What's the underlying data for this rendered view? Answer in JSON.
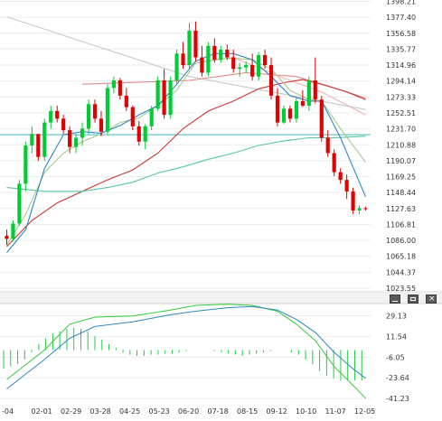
{
  "chart_data": {
    "type": "candlestick",
    "price_axis": {
      "ticks": [
        1023.55,
        1044.37,
        1065.18,
        1086.0,
        1106.81,
        1127.63,
        1148.44,
        1169.25,
        1190.07,
        1210.88,
        1231.7,
        1252.51,
        1273.33,
        1294.14,
        1314.96,
        1335.77,
        1356.58,
        1377.4,
        1398.21
      ],
      "range": [
        1020,
        1400
      ]
    },
    "indicator_axis": {
      "ticks": [
        29.13,
        11.54,
        -6.05,
        -23.64,
        -41.23
      ],
      "range": [
        -45,
        38
      ]
    },
    "x_labels": [
      "-04",
      "02-01",
      "02-29",
      "03-28",
      "04-25",
      "05-23",
      "06-20",
      "07-18",
      "08-15",
      "09-12",
      "10-10",
      "11-07",
      "12-05"
    ],
    "horizontal_level": 1224,
    "candles": [
      [
        1092,
        1100,
        1080,
        1088
      ],
      [
        1088,
        1112,
        1085,
        1108
      ],
      [
        1108,
        1165,
        1105,
        1160
      ],
      [
        1160,
        1215,
        1150,
        1210
      ],
      [
        1210,
        1235,
        1200,
        1225
      ],
      [
        1225,
        1225,
        1190,
        1195
      ],
      [
        1195,
        1245,
        1190,
        1240
      ],
      [
        1240,
        1262,
        1232,
        1255
      ],
      [
        1255,
        1262,
        1240,
        1245
      ],
      [
        1245,
        1250,
        1225,
        1230
      ],
      [
        1230,
        1235,
        1200,
        1208
      ],
      [
        1208,
        1225,
        1200,
        1220
      ],
      [
        1220,
        1240,
        1210,
        1232
      ],
      [
        1232,
        1270,
        1225,
        1264
      ],
      [
        1264,
        1270,
        1240,
        1245
      ],
      [
        1245,
        1255,
        1222,
        1228
      ],
      [
        1228,
        1290,
        1225,
        1285
      ],
      [
        1285,
        1300,
        1278,
        1295
      ],
      [
        1295,
        1298,
        1270,
        1275
      ],
      [
        1275,
        1285,
        1255,
        1260
      ],
      [
        1260,
        1262,
        1230,
        1235
      ],
      [
        1235,
        1242,
        1210,
        1215
      ],
      [
        1215,
        1238,
        1205,
        1235
      ],
      [
        1235,
        1262,
        1230,
        1258
      ],
      [
        1258,
        1300,
        1255,
        1295
      ],
      [
        1295,
        1310,
        1245,
        1250
      ],
      [
        1250,
        1300,
        1245,
        1295
      ],
      [
        1295,
        1335,
        1290,
        1330
      ],
      [
        1330,
        1345,
        1310,
        1315
      ],
      [
        1315,
        1370,
        1310,
        1360
      ],
      [
        1360,
        1372,
        1320,
        1325
      ],
      [
        1325,
        1340,
        1300,
        1305
      ],
      [
        1305,
        1345,
        1300,
        1340
      ],
      [
        1340,
        1350,
        1318,
        1322
      ],
      [
        1322,
        1340,
        1318,
        1335
      ],
      [
        1335,
        1342,
        1322,
        1325
      ],
      [
        1325,
        1335,
        1305,
        1310
      ],
      [
        1310,
        1318,
        1300,
        1312
      ],
      [
        1312,
        1320,
        1305,
        1315
      ],
      [
        1315,
        1330,
        1295,
        1300
      ],
      [
        1300,
        1332,
        1295,
        1328
      ],
      [
        1328,
        1335,
        1310,
        1315
      ],
      [
        1315,
        1325,
        1270,
        1275
      ],
      [
        1275,
        1285,
        1235,
        1240
      ],
      [
        1240,
        1262,
        1238,
        1258
      ],
      [
        1258,
        1262,
        1240,
        1245
      ],
      [
        1245,
        1272,
        1240,
        1268
      ],
      [
        1268,
        1282,
        1260,
        1262
      ],
      [
        1262,
        1300,
        1255,
        1295
      ],
      [
        1295,
        1325,
        1265,
        1270
      ],
      [
        1270,
        1275,
        1215,
        1220
      ],
      [
        1220,
        1230,
        1195,
        1200
      ],
      [
        1200,
        1205,
        1170,
        1175
      ],
      [
        1175,
        1180,
        1160,
        1165
      ],
      [
        1165,
        1172,
        1140,
        1150
      ],
      [
        1150,
        1155,
        1120,
        1125
      ],
      [
        1125,
        1132,
        1120,
        1128
      ],
      [
        1128,
        1130,
        1125,
        1127
      ]
    ],
    "lines": [
      {
        "color": "#c8c8c8",
        "points": [
          [
            0,
            1378
          ],
          [
            29,
            1300
          ],
          [
            57,
            1257
          ]
        ]
      },
      {
        "color": "#e08a8a",
        "points": [
          [
            12,
            1290
          ],
          [
            29,
            1295
          ],
          [
            38,
            1305
          ],
          [
            46,
            1300
          ],
          [
            52,
            1285
          ],
          [
            57,
            1272
          ]
        ]
      },
      {
        "color": "#f4b0b0",
        "points": [
          [
            28,
            1315
          ],
          [
            36,
            1325
          ],
          [
            44,
            1298
          ],
          [
            50,
            1280
          ],
          [
            57,
            1250
          ]
        ]
      },
      {
        "color": "#cc3333",
        "points": [
          [
            0,
            1078
          ],
          [
            4,
            1112
          ],
          [
            8,
            1135
          ],
          [
            12,
            1150
          ],
          [
            16,
            1165
          ],
          [
            20,
            1178
          ],
          [
            24,
            1200
          ],
          [
            28,
            1232
          ],
          [
            32,
            1255
          ],
          [
            36,
            1268
          ],
          [
            40,
            1284
          ],
          [
            44,
            1292
          ],
          [
            47,
            1296
          ],
          [
            50,
            1290
          ],
          [
            54,
            1280
          ],
          [
            57,
            1270
          ]
        ]
      },
      {
        "color": "#55c8a8",
        "points": [
          [
            0,
            1155
          ],
          [
            6,
            1150
          ],
          [
            12,
            1150
          ],
          [
            16,
            1155
          ],
          [
            20,
            1162
          ],
          [
            24,
            1174
          ],
          [
            28,
            1182
          ],
          [
            32,
            1192
          ],
          [
            36,
            1200
          ],
          [
            40,
            1210
          ],
          [
            44,
            1216
          ],
          [
            48,
            1220
          ],
          [
            52,
            1220
          ],
          [
            57,
            1222
          ]
        ]
      },
      {
        "color": "#a8c890",
        "points": [
          [
            0,
            1080
          ],
          [
            3,
            1120
          ],
          [
            6,
            1175
          ],
          [
            9,
            1200
          ],
          [
            12,
            1215
          ],
          [
            15,
            1225
          ],
          [
            18,
            1240
          ],
          [
            21,
            1246
          ],
          [
            24,
            1262
          ],
          [
            27,
            1282
          ],
          [
            30,
            1318
          ],
          [
            33,
            1322
          ],
          [
            36,
            1324
          ],
          [
            39,
            1322
          ],
          [
            42,
            1310
          ],
          [
            45,
            1282
          ],
          [
            48,
            1270
          ],
          [
            50,
            1268
          ],
          [
            53,
            1232
          ],
          [
            57,
            1188
          ]
        ]
      },
      {
        "color": "#2e86c1",
        "points": [
          [
            0,
            1070
          ],
          [
            3,
            1100
          ],
          [
            6,
            1180
          ],
          [
            9,
            1224
          ],
          [
            12,
            1228
          ],
          [
            15,
            1226
          ],
          [
            18,
            1236
          ],
          [
            21,
            1250
          ],
          [
            24,
            1262
          ],
          [
            27,
            1290
          ],
          [
            30,
            1320
          ],
          [
            33,
            1330
          ],
          [
            36,
            1330
          ],
          [
            39,
            1322
          ],
          [
            42,
            1300
          ],
          [
            45,
            1275
          ],
          [
            48,
            1268
          ],
          [
            50,
            1268
          ],
          [
            53,
            1220
          ],
          [
            57,
            1143
          ]
        ]
      }
    ],
    "indicator": {
      "histogram": [
        -16,
        -14,
        -12,
        -8,
        -2,
        5,
        10,
        14,
        16,
        18,
        19,
        18,
        16,
        12,
        9,
        5,
        2,
        -2,
        -4,
        -5,
        -5,
        -4,
        -4,
        -3,
        -3,
        -2,
        -1,
        0,
        0,
        0,
        -1,
        -2,
        -3,
        -4,
        -5,
        -4,
        -3,
        -2,
        -1,
        0,
        0,
        -2,
        -4,
        -8,
        -12,
        -18,
        -22,
        -24,
        -26,
        -26,
        -26,
        -26
      ],
      "fast": [
        [
          0,
          -25
        ],
        [
          6,
          0
        ],
        [
          10,
          22
        ],
        [
          14,
          28
        ],
        [
          20,
          29
        ],
        [
          26,
          34
        ],
        [
          30,
          38
        ],
        [
          35,
          39
        ],
        [
          39,
          38
        ],
        [
          43,
          33
        ],
        [
          46,
          22
        ],
        [
          49,
          8
        ],
        [
          52,
          -14
        ],
        [
          55,
          -30
        ],
        [
          57,
          -41
        ]
      ],
      "slow": [
        [
          0,
          -33
        ],
        [
          6,
          -8
        ],
        [
          10,
          10
        ],
        [
          14,
          20
        ],
        [
          20,
          24
        ],
        [
          26,
          30
        ],
        [
          30,
          33
        ],
        [
          35,
          36
        ],
        [
          39,
          37
        ],
        [
          43,
          34
        ],
        [
          46,
          26
        ],
        [
          49,
          15
        ],
        [
          52,
          -2
        ],
        [
          55,
          -16
        ],
        [
          57,
          -24
        ]
      ]
    }
  },
  "window_controls": {
    "minimize_icon": "minimize-icon",
    "restore_icon": "restore-icon",
    "close_icon": "close-icon",
    "close_glyph": "×"
  }
}
